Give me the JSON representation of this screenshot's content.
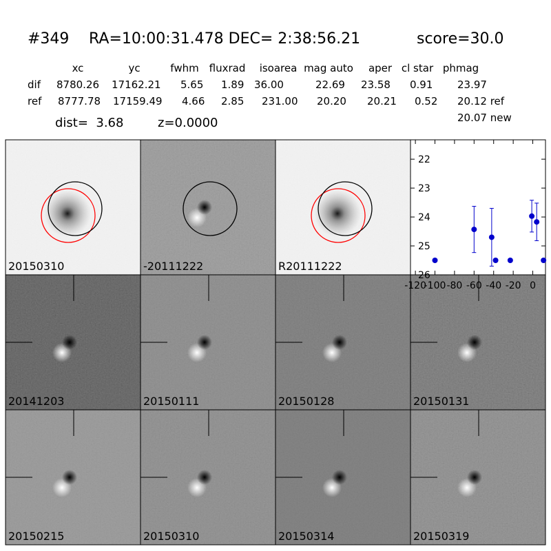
{
  "header": {
    "id": "#349",
    "coords": "RA=10:00:31.478 DEC= 2:38:56.21",
    "score": "score=30.0"
  },
  "table": {
    "columns": [
      "xc",
      "yc",
      "fwhm",
      "fluxrad",
      "isoarea",
      "mag auto",
      "aper",
      "cl star",
      "phmag"
    ],
    "rows": [
      [
        "dif",
        "8780.26",
        "17162.21",
        "5.65",
        "1.89",
        "36.00",
        "22.69",
        "23.58",
        "0.91",
        "23.97"
      ],
      [
        "ref",
        "8777.78",
        "17159.49",
        "4.66",
        "2.85",
        "231.00",
        "20.20",
        "20.21",
        "0.52",
        "20.12 ref"
      ]
    ],
    "extra": "20.07 new"
  },
  "dist": "dist=  3.68",
  "z": "z=0.0000",
  "panels": [
    {
      "label": "20150310",
      "color": "#000000"
    },
    {
      "label": "-20111222",
      "color": "#000000"
    },
    {
      "label": "R20111222",
      "color": "#000000"
    },
    {
      "label": "20141203",
      "color": "#000000"
    },
    {
      "label": "20150111",
      "color": "#000000"
    },
    {
      "label": "20150128",
      "color": "#000000"
    },
    {
      "label": "20150131",
      "color": "#000000"
    },
    {
      "label": "20150215",
      "color": "#000000"
    },
    {
      "label": "20150310",
      "color": "#ff0000"
    },
    {
      "label": "20150314",
      "color": "#000000"
    },
    {
      "label": "20150319",
      "color": "#000000"
    }
  ],
  "chart_data": {
    "type": "errorbar",
    "x": [
      -100,
      -60,
      -42,
      -38,
      -23,
      -1,
      4,
      11
    ],
    "values": [
      25.5,
      24.43,
      24.7,
      25.5,
      25.5,
      23.97,
      24.17,
      25.5
    ],
    "errors": [
      0.05,
      0.8,
      1.0,
      0.05,
      0.05,
      0.55,
      0.65,
      0.05
    ],
    "color": "#0000cc",
    "xlim": [
      -125,
      13
    ],
    "ylim": [
      26,
      21.33
    ],
    "xticks": [
      -120,
      -100,
      -80,
      -60,
      -40,
      -20,
      0
    ],
    "yticks": [
      22,
      23,
      24,
      25,
      26
    ]
  }
}
